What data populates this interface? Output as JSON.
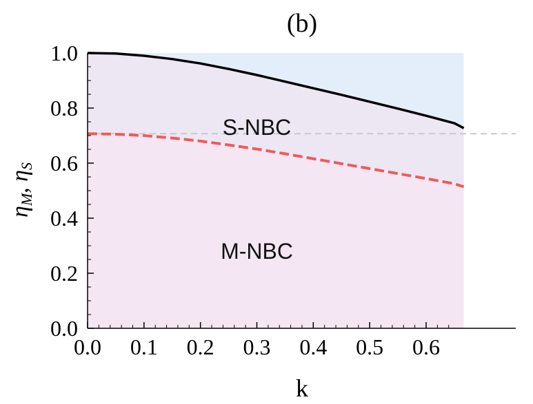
{
  "chart_data": {
    "type": "area",
    "title": "(b)",
    "xlabel": "k",
    "ylabel_main": "η",
    "ylabel_sub_m": "M",
    "ylabel_sep": ", ",
    "ylabel_sub_s": "S",
    "xlim": [
      0,
      0.6667
    ],
    "ylim": [
      0,
      1.0
    ],
    "xticks": [
      {
        "v": 0.0,
        "label": "0.0"
      },
      {
        "v": 0.1,
        "label": "0.1"
      },
      {
        "v": 0.2,
        "label": "0.2"
      },
      {
        "v": 0.3,
        "label": "0.3"
      },
      {
        "v": 0.4,
        "label": "0.4"
      },
      {
        "v": 0.5,
        "label": "0.5"
      },
      {
        "v": 0.6,
        "label": "0.6"
      }
    ],
    "yticks": [
      {
        "v": 0.0,
        "label": "0.0"
      },
      {
        "v": 0.2,
        "label": "0.2"
      },
      {
        "v": 0.4,
        "label": "0.4"
      },
      {
        "v": 0.6,
        "label": "0.6"
      },
      {
        "v": 0.8,
        "label": "0.8"
      },
      {
        "v": 1.0,
        "label": "1.0"
      }
    ],
    "reference_line": {
      "y": 0.707,
      "style": "dashed",
      "color": "#c8c8c8"
    },
    "series": [
      {
        "style": "solid",
        "color": "#000000",
        "x": [
          0.0,
          0.05,
          0.1,
          0.15,
          0.2,
          0.25,
          0.3,
          0.35,
          0.4,
          0.45,
          0.5,
          0.55,
          0.6,
          0.65,
          0.6667
        ],
        "y": [
          1.0,
          0.998,
          0.99,
          0.978,
          0.962,
          0.942,
          0.92,
          0.896,
          0.872,
          0.848,
          0.823,
          0.798,
          0.772,
          0.745,
          0.727
        ]
      },
      {
        "style": "dashed",
        "color": "#f05a5a",
        "x": [
          0.0,
          0.05,
          0.1,
          0.15,
          0.2,
          0.25,
          0.3,
          0.35,
          0.4,
          0.45,
          0.5,
          0.55,
          0.6,
          0.65,
          0.6667
        ],
        "y": [
          0.707,
          0.705,
          0.7,
          0.691,
          0.68,
          0.666,
          0.651,
          0.634,
          0.616,
          0.598,
          0.58,
          0.562,
          0.544,
          0.525,
          0.514
        ]
      }
    ],
    "regions": [
      {
        "label": "S-NBC",
        "label_x": 0.3,
        "label_y": 0.73,
        "fill": "#ece7f3"
      },
      {
        "label": "M-NBC",
        "label_x": 0.3,
        "label_y": 0.28,
        "fill": "#f4e6f2"
      }
    ],
    "upper_fill": "#e3eefa"
  }
}
